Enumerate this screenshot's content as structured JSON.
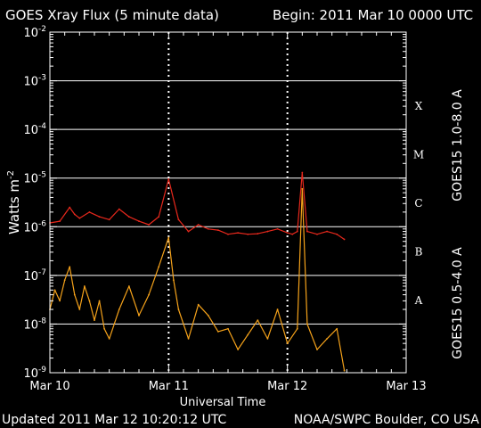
{
  "header": {
    "title": "GOES Xray Flux (5 minute data)",
    "begin": "Begin:  2011 Mar 10 0000 UTC"
  },
  "footer": {
    "updated": "Updated 2011 Mar 12 10:20:12 UTC",
    "credit": "NOAA/SWPC Boulder, CO USA"
  },
  "colors": {
    "background": "#000000",
    "long_channel": "#e8281c",
    "short_channel": "#f5a21a",
    "right_label_long": "#e05a3a",
    "right_label_short": "#e07a3a"
  },
  "chart_data": {
    "type": "line",
    "title": "GOES Xray Flux (5 minute data)",
    "xlabel": "Universal Time",
    "ylabel": "Watts m",
    "ylabel_sup": "-2",
    "y_scale": "log",
    "ylim": [
      1e-09,
      0.01
    ],
    "y_ticks": [
      {
        "base": "10",
        "exp": "-9",
        "value": 1e-09
      },
      {
        "base": "10",
        "exp": "-8",
        "value": 1e-08
      },
      {
        "base": "10",
        "exp": "-7",
        "value": 1e-07
      },
      {
        "base": "10",
        "exp": "-6",
        "value": 1e-06
      },
      {
        "base": "10",
        "exp": "-5",
        "value": 1e-05
      },
      {
        "base": "10",
        "exp": "-4",
        "value": 0.0001
      },
      {
        "base": "10",
        "exp": "-3",
        "value": 0.001
      },
      {
        "base": "10",
        "exp": "-2",
        "value": 0.01
      }
    ],
    "x_ticks": [
      "Mar 10",
      "Mar 11",
      "Mar 12",
      "Mar 13"
    ],
    "xlim_hours": [
      0,
      72
    ],
    "flare_classes": [
      {
        "label": "A",
        "value": 1e-08
      },
      {
        "label": "B",
        "value": 1e-07
      },
      {
        "label": "C",
        "value": 1e-06
      },
      {
        "label": "M",
        "value": 1e-05
      },
      {
        "label": "X",
        "value": 0.0001
      }
    ],
    "grid": true,
    "series": [
      {
        "name": "GOES15 1.0-8.0 A",
        "x_hours": [
          0,
          2,
          4,
          5,
          6,
          8,
          10,
          12,
          14,
          16,
          18,
          20,
          22,
          24,
          26,
          28,
          30,
          32,
          34,
          36,
          38,
          40,
          42,
          44,
          46,
          48,
          49,
          50,
          51,
          52,
          54,
          56,
          58,
          59.5
        ],
        "values": [
          1.2e-06,
          1.3e-06,
          2.5e-06,
          1.8e-06,
          1.5e-06,
          2e-06,
          1.6e-06,
          1.4e-06,
          2.3e-06,
          1.6e-06,
          1.3e-06,
          1.1e-06,
          1.6e-06,
          9.5e-06,
          1.4e-06,
          8e-07,
          1.1e-06,
          9e-07,
          8.5e-07,
          7e-07,
          7.5e-07,
          7e-07,
          7.2e-07,
          8e-07,
          9e-07,
          7.5e-07,
          7e-07,
          8e-07,
          1.3e-05,
          8e-07,
          7e-07,
          8e-07,
          7e-07,
          5.5e-07
        ]
      },
      {
        "name": "GOES15 0.5-4.0 A",
        "x_hours": [
          0,
          1,
          2,
          3,
          4,
          5,
          6,
          7,
          8,
          9,
          10,
          11,
          12,
          14,
          16,
          18,
          20,
          22,
          24,
          25,
          26,
          28,
          30,
          32,
          34,
          36,
          38,
          40,
          42,
          44,
          46,
          48,
          50,
          51,
          52,
          54,
          56,
          58,
          59.5
        ],
        "values": [
          2e-08,
          5e-08,
          3e-08,
          8e-08,
          1.5e-07,
          4e-08,
          2e-08,
          6e-08,
          3e-08,
          1.2e-08,
          3e-08,
          8e-09,
          5e-09,
          2e-08,
          6e-08,
          1.5e-08,
          4e-08,
          1.5e-07,
          6e-07,
          8e-08,
          2e-08,
          5e-09,
          2.5e-08,
          1.5e-08,
          7e-09,
          8e-09,
          3e-09,
          6e-09,
          1.2e-08,
          5e-09,
          2e-08,
          4e-09,
          8e-09,
          6e-06,
          1e-08,
          3e-09,
          5e-09,
          8e-09,
          1.1e-09
        ]
      }
    ]
  }
}
